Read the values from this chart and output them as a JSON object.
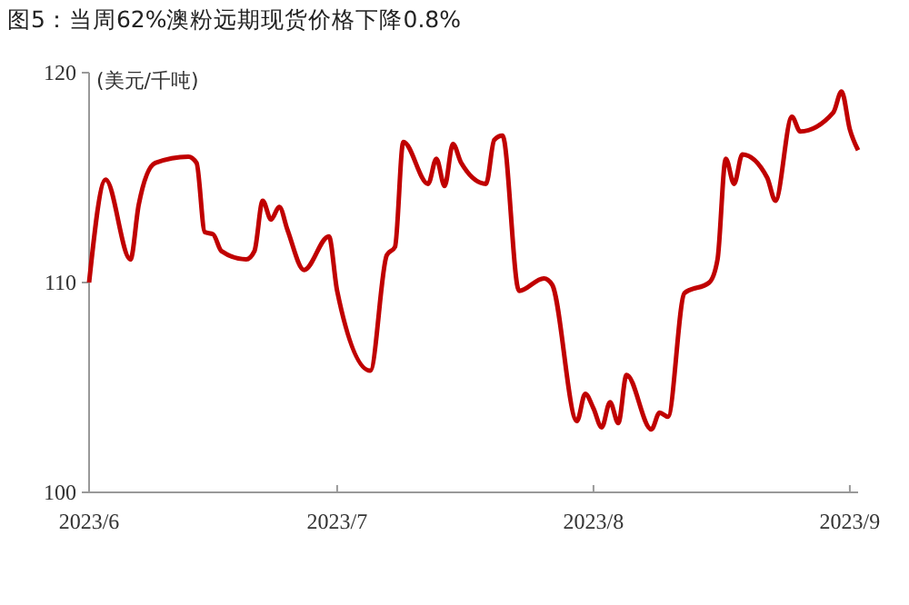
{
  "chart_data": {
    "type": "line",
    "title": "图5：当周62%澳粉远期现货价格下降0.8%",
    "ylabel": "(美元/千吨)",
    "x": [
      "2023-06-01",
      "2023-06-03",
      "2023-06-06",
      "2023-06-07",
      "2023-06-09",
      "2023-06-13",
      "2023-06-14",
      "2023-06-15",
      "2023-06-16",
      "2023-06-17",
      "2023-06-20",
      "2023-06-21",
      "2023-06-22",
      "2023-06-23",
      "2023-06-24",
      "2023-06-25",
      "2023-06-27",
      "2023-06-30",
      "2023-07-01",
      "2023-07-05",
      "2023-07-07",
      "2023-07-08",
      "2023-07-09",
      "2023-07-12",
      "2023-07-13",
      "2023-07-14",
      "2023-07-15",
      "2023-07-16",
      "2023-07-19",
      "2023-07-20",
      "2023-07-21",
      "2023-07-23",
      "2023-07-26",
      "2023-07-27",
      "2023-07-30",
      "2023-07-31",
      "2023-08-01",
      "2023-08-02",
      "2023-08-03",
      "2023-08-04",
      "2023-08-05",
      "2023-08-08",
      "2023-08-09",
      "2023-08-10",
      "2023-08-12",
      "2023-08-15",
      "2023-08-16",
      "2023-08-17",
      "2023-08-18",
      "2023-08-19",
      "2023-08-22",
      "2023-08-23",
      "2023-08-25",
      "2023-08-26",
      "2023-08-30",
      "2023-08-31",
      "2023-09-01",
      "2023-09-02"
    ],
    "series": [
      {
        "color": "#c00000",
        "values": [
          110.0,
          114.9,
          111.1,
          113.7,
          115.7,
          116.0,
          115.7,
          112.4,
          112.3,
          111.5,
          111.1,
          111.5,
          113.9,
          113.0,
          113.6,
          112.5,
          110.6,
          112.2,
          109.6,
          105.8,
          111.3,
          111.7,
          116.7,
          114.7,
          115.9,
          114.6,
          116.6,
          115.7,
          114.7,
          116.8,
          117.0,
          109.6,
          110.2,
          109.9,
          103.4,
          104.7,
          104.0,
          103.1,
          104.3,
          103.3,
          105.6,
          103.0,
          103.8,
          103.6,
          109.5,
          110.0,
          111.1,
          115.9,
          114.7,
          116.1,
          115.0,
          113.9,
          117.9,
          117.2,
          118.1,
          119.1,
          117.3,
          116.3
        ]
      }
    ],
    "xlim": [
      "2023-06-01",
      "2023-09-02"
    ],
    "xticks": [
      {
        "value": "2023-06-01",
        "label": "2023/6"
      },
      {
        "value": "2023-07-01",
        "label": "2023/7"
      },
      {
        "value": "2023-08-01",
        "label": "2023/8"
      },
      {
        "value": "2023-09-01",
        "label": "2023/9"
      }
    ],
    "ylim": [
      100,
      120
    ],
    "yticks": [
      100,
      110,
      120
    ],
    "grid": false,
    "marker": "none",
    "line_style": "solid"
  }
}
